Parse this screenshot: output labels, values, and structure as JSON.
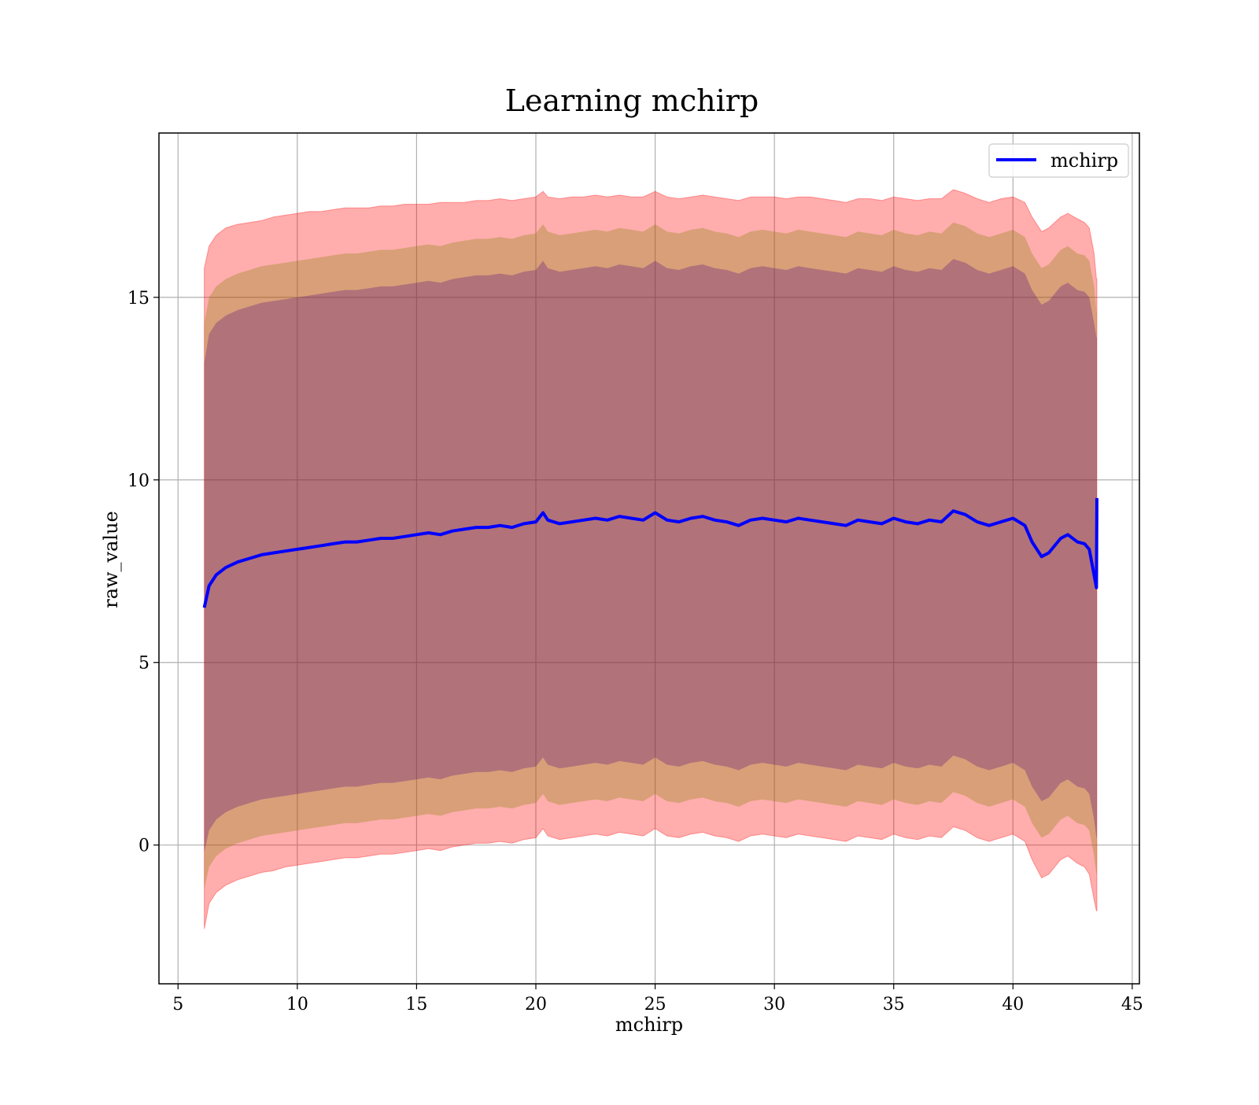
{
  "chart_data": {
    "type": "line",
    "title": "Learning mchirp",
    "xlabel": "mchirp",
    "ylabel": "raw_value",
    "xlim": [
      4.2,
      45.3
    ],
    "ylim": [
      -3.8,
      19.5
    ],
    "xticks": [
      5,
      10,
      15,
      20,
      25,
      30,
      35,
      40,
      45
    ],
    "yticks": [
      0,
      5,
      10,
      15
    ],
    "xtick_labels": [
      "5",
      "10",
      "15",
      "20",
      "25",
      "30",
      "35",
      "40",
      "45"
    ],
    "ytick_labels": [
      "0",
      "5",
      "10",
      "15"
    ],
    "grid": true,
    "legend": {
      "position": "top-right",
      "entries": [
        "mchirp"
      ]
    },
    "colors": {
      "line": "#0000ff",
      "band_outer": "#ff0000",
      "band_middle": "#808000",
      "band_inner": "#4b0082"
    },
    "series": [
      {
        "name": "mchirp",
        "x": [
          6.1,
          6.3,
          6.6,
          7.0,
          7.5,
          8.0,
          8.5,
          9.0,
          9.5,
          10.0,
          10.5,
          11.0,
          11.5,
          12.0,
          12.5,
          13.0,
          13.5,
          14.0,
          14.5,
          15.0,
          15.5,
          16.0,
          16.5,
          17.0,
          17.5,
          18.0,
          18.5,
          19.0,
          19.5,
          20.0,
          20.3,
          20.5,
          21.0,
          21.5,
          22.0,
          22.5,
          23.0,
          23.5,
          24.0,
          24.5,
          25.0,
          25.5,
          26.0,
          26.5,
          27.0,
          27.5,
          28.0,
          28.5,
          29.0,
          29.5,
          30.0,
          30.5,
          31.0,
          31.5,
          32.0,
          32.5,
          33.0,
          33.5,
          34.0,
          34.5,
          35.0,
          35.5,
          36.0,
          36.5,
          37.0,
          37.5,
          38.0,
          38.5,
          39.0,
          39.5,
          40.0,
          40.5,
          40.8,
          41.2,
          41.5,
          42.0,
          42.3,
          42.7,
          43.0,
          43.2,
          43.4,
          43.5,
          43.52
        ],
        "values": [
          6.5,
          7.1,
          7.4,
          7.6,
          7.75,
          7.85,
          7.95,
          8.0,
          8.05,
          8.1,
          8.15,
          8.2,
          8.25,
          8.3,
          8.3,
          8.35,
          8.4,
          8.4,
          8.45,
          8.5,
          8.55,
          8.5,
          8.6,
          8.65,
          8.7,
          8.7,
          8.75,
          8.7,
          8.8,
          8.85,
          9.1,
          8.9,
          8.8,
          8.85,
          8.9,
          8.95,
          8.9,
          9.0,
          8.95,
          8.9,
          9.1,
          8.9,
          8.85,
          8.95,
          9.0,
          8.9,
          8.85,
          8.75,
          8.9,
          8.95,
          8.9,
          8.85,
          8.95,
          8.9,
          8.85,
          8.8,
          8.75,
          8.9,
          8.85,
          8.8,
          8.95,
          8.85,
          8.8,
          8.9,
          8.85,
          9.15,
          9.05,
          8.85,
          8.75,
          8.85,
          8.95,
          8.75,
          8.3,
          7.9,
          8.0,
          8.4,
          8.5,
          8.3,
          8.25,
          8.1,
          7.4,
          7.05,
          9.5
        ],
        "band_outer_upper": [
          15.8,
          16.4,
          16.7,
          16.9,
          17.0,
          17.05,
          17.1,
          17.2,
          17.25,
          17.3,
          17.35,
          17.35,
          17.4,
          17.45,
          17.45,
          17.45,
          17.5,
          17.5,
          17.55,
          17.55,
          17.55,
          17.6,
          17.6,
          17.6,
          17.65,
          17.65,
          17.7,
          17.65,
          17.7,
          17.75,
          17.9,
          17.75,
          17.7,
          17.75,
          17.75,
          17.8,
          17.75,
          17.8,
          17.75,
          17.75,
          17.9,
          17.75,
          17.7,
          17.75,
          17.8,
          17.75,
          17.7,
          17.65,
          17.75,
          17.75,
          17.75,
          17.7,
          17.75,
          17.75,
          17.7,
          17.65,
          17.6,
          17.7,
          17.7,
          17.65,
          17.75,
          17.7,
          17.65,
          17.7,
          17.7,
          17.95,
          17.85,
          17.7,
          17.6,
          17.7,
          17.75,
          17.6,
          17.2,
          16.8,
          16.9,
          17.2,
          17.3,
          17.15,
          17.05,
          16.9,
          16.2,
          15.5,
          15.5
        ],
        "band_outer_lower": [
          -2.3,
          -1.6,
          -1.3,
          -1.1,
          -0.95,
          -0.85,
          -0.75,
          -0.7,
          -0.6,
          -0.55,
          -0.5,
          -0.45,
          -0.4,
          -0.35,
          -0.35,
          -0.3,
          -0.25,
          -0.25,
          -0.2,
          -0.15,
          -0.1,
          -0.15,
          -0.05,
          0.0,
          0.05,
          0.05,
          0.1,
          0.05,
          0.15,
          0.2,
          0.45,
          0.25,
          0.15,
          0.2,
          0.25,
          0.3,
          0.25,
          0.35,
          0.3,
          0.25,
          0.45,
          0.25,
          0.2,
          0.3,
          0.35,
          0.25,
          0.2,
          0.1,
          0.25,
          0.3,
          0.25,
          0.2,
          0.3,
          0.25,
          0.2,
          0.15,
          0.1,
          0.25,
          0.2,
          0.15,
          0.3,
          0.2,
          0.15,
          0.25,
          0.2,
          0.5,
          0.4,
          0.2,
          0.1,
          0.2,
          0.3,
          0.1,
          -0.4,
          -0.9,
          -0.8,
          -0.4,
          -0.3,
          -0.5,
          -0.6,
          -0.8,
          -1.5,
          -1.8,
          -1.8
        ],
        "band_middle_upper": [
          14.3,
          15.0,
          15.3,
          15.5,
          15.65,
          15.75,
          15.85,
          15.9,
          15.95,
          16.0,
          16.05,
          16.1,
          16.15,
          16.2,
          16.2,
          16.25,
          16.3,
          16.3,
          16.35,
          16.4,
          16.45,
          16.4,
          16.5,
          16.55,
          16.6,
          16.6,
          16.65,
          16.6,
          16.7,
          16.75,
          17.0,
          16.8,
          16.7,
          16.75,
          16.8,
          16.85,
          16.8,
          16.9,
          16.85,
          16.8,
          17.0,
          16.8,
          16.75,
          16.85,
          16.9,
          16.8,
          16.75,
          16.65,
          16.8,
          16.85,
          16.8,
          16.75,
          16.85,
          16.8,
          16.75,
          16.7,
          16.65,
          16.8,
          16.75,
          16.7,
          16.85,
          16.75,
          16.7,
          16.8,
          16.75,
          17.05,
          16.95,
          16.75,
          16.65,
          16.75,
          16.85,
          16.65,
          16.2,
          15.8,
          15.9,
          16.3,
          16.4,
          16.2,
          16.15,
          16.0,
          15.3,
          14.6,
          14.6
        ],
        "band_middle_lower": [
          -1.2,
          -0.6,
          -0.3,
          -0.1,
          0.05,
          0.15,
          0.25,
          0.3,
          0.35,
          0.4,
          0.45,
          0.5,
          0.55,
          0.6,
          0.6,
          0.65,
          0.7,
          0.7,
          0.75,
          0.8,
          0.85,
          0.8,
          0.9,
          0.95,
          1.0,
          1.0,
          1.05,
          1.0,
          1.1,
          1.15,
          1.4,
          1.2,
          1.1,
          1.15,
          1.2,
          1.25,
          1.2,
          1.3,
          1.25,
          1.2,
          1.4,
          1.2,
          1.15,
          1.25,
          1.3,
          1.2,
          1.15,
          1.05,
          1.2,
          1.25,
          1.2,
          1.15,
          1.25,
          1.2,
          1.15,
          1.1,
          1.05,
          1.2,
          1.15,
          1.1,
          1.25,
          1.15,
          1.1,
          1.2,
          1.15,
          1.45,
          1.35,
          1.15,
          1.05,
          1.15,
          1.25,
          1.05,
          0.6,
          0.2,
          0.3,
          0.7,
          0.8,
          0.6,
          0.55,
          0.4,
          -0.3,
          -0.8,
          -0.8
        ],
        "band_inner_upper": [
          13.2,
          14.0,
          14.3,
          14.5,
          14.65,
          14.75,
          14.85,
          14.9,
          14.95,
          15.0,
          15.05,
          15.1,
          15.15,
          15.2,
          15.2,
          15.25,
          15.3,
          15.3,
          15.35,
          15.4,
          15.45,
          15.4,
          15.5,
          15.55,
          15.6,
          15.6,
          15.65,
          15.6,
          15.7,
          15.75,
          16.0,
          15.8,
          15.7,
          15.75,
          15.8,
          15.85,
          15.8,
          15.9,
          15.85,
          15.8,
          16.0,
          15.8,
          15.75,
          15.85,
          15.9,
          15.8,
          15.75,
          15.65,
          15.8,
          15.85,
          15.8,
          15.75,
          15.85,
          15.8,
          15.75,
          15.7,
          15.65,
          15.8,
          15.75,
          15.7,
          15.85,
          15.75,
          15.7,
          15.8,
          15.75,
          16.05,
          15.95,
          15.75,
          15.65,
          15.75,
          15.85,
          15.65,
          15.2,
          14.8,
          14.9,
          15.3,
          15.4,
          15.2,
          15.15,
          15.0,
          14.3,
          13.9,
          13.9
        ],
        "band_inner_lower": [
          -0.2,
          0.4,
          0.7,
          0.9,
          1.05,
          1.15,
          1.25,
          1.3,
          1.35,
          1.4,
          1.45,
          1.5,
          1.55,
          1.6,
          1.6,
          1.65,
          1.7,
          1.7,
          1.75,
          1.8,
          1.85,
          1.8,
          1.9,
          1.95,
          2.0,
          2.0,
          2.05,
          2.0,
          2.1,
          2.15,
          2.4,
          2.2,
          2.1,
          2.15,
          2.2,
          2.25,
          2.2,
          2.3,
          2.25,
          2.2,
          2.4,
          2.2,
          2.15,
          2.25,
          2.3,
          2.2,
          2.15,
          2.05,
          2.2,
          2.25,
          2.2,
          2.15,
          2.25,
          2.2,
          2.15,
          2.1,
          2.05,
          2.2,
          2.15,
          2.1,
          2.25,
          2.15,
          2.1,
          2.2,
          2.15,
          2.45,
          2.35,
          2.15,
          2.05,
          2.15,
          2.25,
          2.05,
          1.6,
          1.2,
          1.3,
          1.7,
          1.8,
          1.6,
          1.55,
          1.4,
          0.7,
          0.2,
          0.2
        ]
      }
    ]
  }
}
